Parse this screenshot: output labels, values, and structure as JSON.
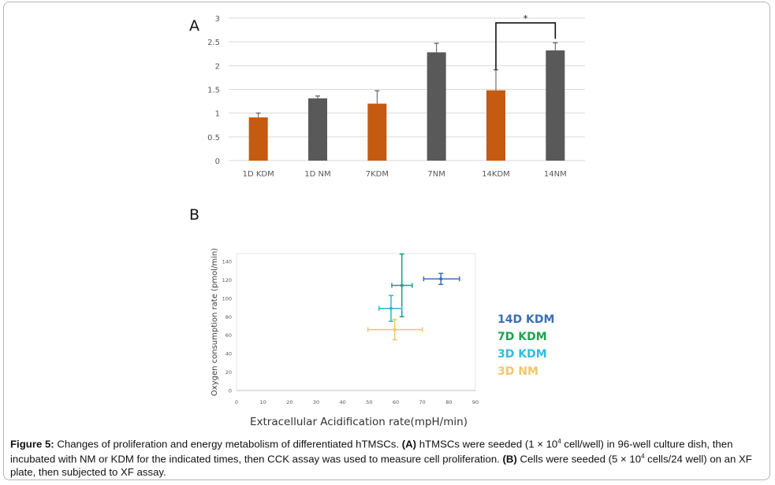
{
  "figure": {
    "panel_a_label": "A",
    "panel_b_label": "B",
    "caption": {
      "lead": "Figure 5:",
      "part1": " Changes of proliferation and energy metabolism of differentiated hTMSCs. ",
      "a_tag": "(A)",
      "part2": " hTMSCs were seeded (1 × 10",
      "sup1": "4",
      "part3": " cell/well) in 96-well culture dish, then incubated with NM or KDM for the indicated times, then CCK assay was used to measure cell proliferation. ",
      "b_tag": "(B)",
      "part4": " Cells were seeded (5 × 10",
      "sup2": "4",
      "part5": " cells/24 well) on an XF plate, then subjected to XF assay."
    }
  },
  "colors": {
    "kdm_bar": "#c55a11",
    "nm_bar": "#595959",
    "grid": "#d9d9d9",
    "d14_kdm": "#3a6fb5",
    "d7_kdm": "#1e9c8a",
    "d3_kdm": "#2fb5c9",
    "d3_nm": "#f0c95a"
  },
  "chart_data": [
    {
      "type": "bar",
      "title": "",
      "xlabel": "",
      "ylabel": "",
      "categories": [
        "1D KDM",
        "1D NM",
        "7KDM",
        "7NM",
        "14KDM",
        "14NM"
      ],
      "values": [
        0.91,
        1.31,
        1.2,
        2.28,
        1.48,
        2.32
      ],
      "error_upper": [
        0.09,
        0.05,
        0.27,
        0.19,
        0.43,
        0.16
      ],
      "bar_groups": [
        "KDM",
        "NM",
        "KDM",
        "NM",
        "KDM",
        "NM"
      ],
      "ylim": [
        0,
        3
      ],
      "yticks": [
        "0",
        "0.5",
        "1",
        "1.5",
        "2",
        "2.5",
        "3"
      ],
      "ytick_values": [
        0,
        0.5,
        1,
        1.5,
        2,
        2.5,
        3
      ],
      "grid": true,
      "annotations": [
        {
          "text": "*",
          "between": [
            "14KDM",
            "14NM"
          ],
          "level": 2.9
        }
      ]
    },
    {
      "type": "scatter",
      "title": "",
      "xlabel": "Extracellular Acidification rate(mpH/min)",
      "ylabel": "Oxygen consumption rate (pmol/min)",
      "xlim": [
        0,
        90
      ],
      "ylim": [
        0,
        150
      ],
      "xticks": [
        0,
        10,
        20,
        30,
        40,
        50,
        60,
        70,
        80,
        90
      ],
      "yticks": [
        0,
        20,
        40,
        60,
        80,
        100,
        120,
        140
      ],
      "grid": false,
      "legend_position": "right",
      "series": [
        {
          "name": "14D KDM",
          "x": 77,
          "y": 121,
          "xerr": [
            70.5,
            84
          ],
          "yerr": [
            115,
            127
          ],
          "color_key": "d14_kdm"
        },
        {
          "name": "7D KDM",
          "x": 62.3,
          "y": 114,
          "xerr": [
            58.5,
            66.2
          ],
          "yerr": [
            80,
            148
          ],
          "color_key": "d7_kdm"
        },
        {
          "name": "3D KDM",
          "x": 58.2,
          "y": 89,
          "xerr": [
            53.7,
            62.3
          ],
          "yerr": [
            75,
            103
          ],
          "color_key": "d3_kdm"
        },
        {
          "name": "3D NM",
          "x": 59.6,
          "y": 66,
          "xerr": [
            49.5,
            70
          ],
          "yerr": [
            55,
            77
          ],
          "color_key": "d3_nm"
        }
      ]
    }
  ]
}
